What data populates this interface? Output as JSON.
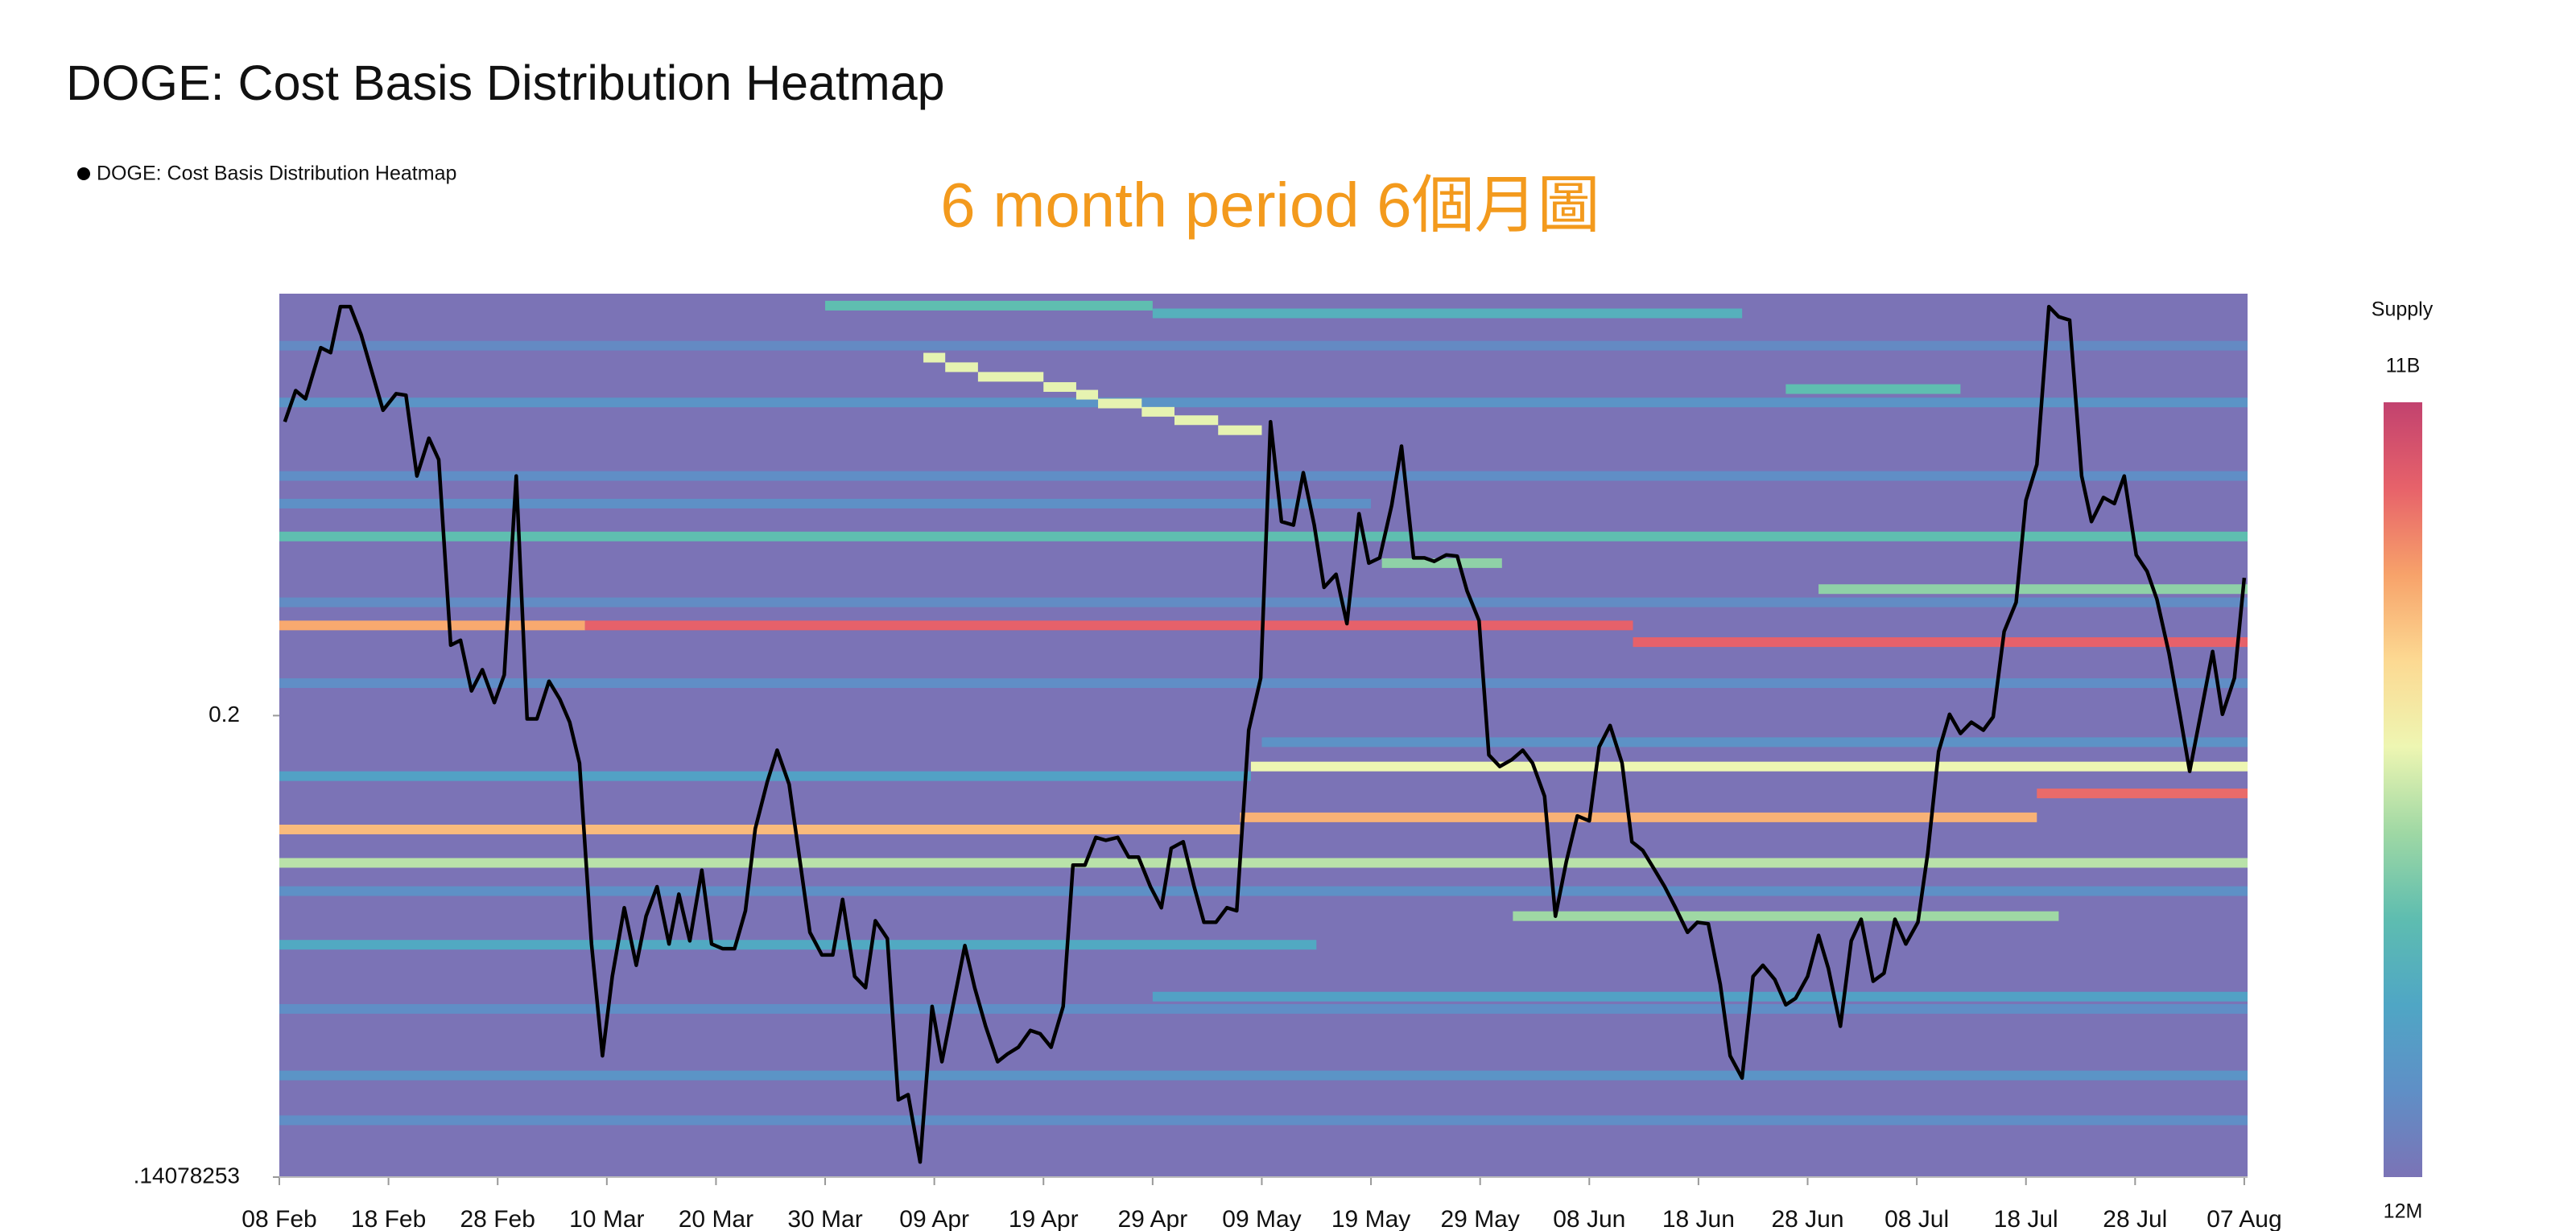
{
  "chart_data": {
    "type": "heatmap",
    "title": "DOGE: Cost Basis Distribution Heatmap",
    "annotation": "6 month period 6個月圖",
    "log_y": true,
    "xlim": [
      0,
      180.3
    ],
    "xticks": [
      {
        "value": 0,
        "label": "08 Feb"
      },
      {
        "value": 10,
        "label": "18 Feb"
      },
      {
        "value": 20,
        "label": "28 Feb"
      },
      {
        "value": 30,
        "label": "10 Mar"
      },
      {
        "value": 40,
        "label": "20 Mar"
      },
      {
        "value": 50,
        "label": "30 Mar"
      },
      {
        "value": 60,
        "label": "09 Apr"
      },
      {
        "value": 70,
        "label": "19 Apr"
      },
      {
        "value": 80,
        "label": "29 Apr"
      },
      {
        "value": 90,
        "label": "09 May"
      },
      {
        "value": 100,
        "label": "19 May"
      },
      {
        "value": 110,
        "label": "29 May"
      },
      {
        "value": 120,
        "label": "08 Jun"
      },
      {
        "value": 130,
        "label": "18 Jun"
      },
      {
        "value": 140,
        "label": "28 Jun"
      },
      {
        "value": 150,
        "label": "08 Jul"
      },
      {
        "value": 160,
        "label": "18 Jul"
      },
      {
        "value": 170,
        "label": "28 Jul"
      },
      {
        "value": 180,
        "label": "07 Aug"
      }
    ],
    "ylim": [
      0.14078253,
      0.2757
    ],
    "yticks": [
      0.2,
      {
        "value": 0.14078253,
        "label": ".14078253"
      }
    ],
    "series": [
      {
        "name": "DOGE: Cost Basis Distribution Heatmap",
        "color": "#000000",
        "x": [
          0.5,
          1.5,
          2.4,
          3.8,
          4.7,
          5.6,
          6.5,
          7.5,
          9.5,
          10.7,
          11.6,
          12.6,
          13.7,
          14.6,
          15.7,
          16.6,
          17.6,
          18.6,
          19.7,
          20.6,
          21.7,
          22.7,
          23.6,
          24.7,
          25.7,
          26.6,
          27.5,
          28.6,
          29.6,
          30.5,
          31.6,
          32.7,
          33.6,
          34.6,
          35.7,
          36.6,
          37.6,
          38.7,
          39.6,
          40.6,
          41.7,
          42.7,
          43.6,
          44.7,
          45.6,
          46.7,
          47.7,
          48.6,
          49.7,
          50.7,
          51.6,
          52.7,
          53.7,
          54.6,
          55.7,
          56.7,
          57.6,
          58.7,
          59.8,
          60.7,
          62.8,
          63.7,
          64.7,
          65.8,
          66.7,
          67.7,
          68.8,
          69.7,
          70.7,
          71.8,
          72.7,
          73.8,
          74.8,
          75.7,
          76.8,
          77.8,
          78.7,
          79.8,
          80.8,
          81.7,
          82.8,
          83.8,
          84.7,
          85.8,
          86.8,
          87.7,
          88.8,
          89.9,
          90.8,
          91.8,
          92.9,
          93.8,
          94.8,
          95.7,
          96.8,
          97.8,
          98.9,
          99.8,
          100.8,
          101.9,
          102.8,
          103.9,
          104.9,
          105.8,
          106.9,
          107.9,
          108.8,
          109.9,
          110.8,
          111.8,
          112.9,
          113.9,
          114.8,
          115.9,
          116.9,
          117.9,
          118.9,
          120.0,
          120.9,
          121.9,
          123.0,
          123.9,
          124.9,
          126.0,
          126.9,
          127.9,
          129.0,
          129.9,
          130.9,
          132.0,
          132.9,
          134.0,
          135.0,
          135.9,
          137.0,
          138.0,
          138.9,
          140.0,
          141.0,
          141.9,
          143.0,
          144.0,
          144.9,
          146.0,
          147.0,
          148.0,
          149.0,
          150.1,
          151.0,
          152.0,
          153.0,
          154.0,
          155.0,
          156.1,
          157.0,
          158.0,
          159.1,
          160.0,
          161.0,
          162.1,
          163.0,
          164.0,
          165.1,
          166.0,
          167.1,
          168.1,
          169.0,
          170.1,
          171.1,
          172.0,
          173.1,
          174.1,
          175.0,
          176.1,
          177.1,
          178.0,
          179.1,
          180.0
        ],
        "values": [
          0.2501,
          0.2561,
          0.2545,
          0.2646,
          0.2636,
          0.273,
          0.273,
          0.2672,
          0.2523,
          0.2555,
          0.2552,
          0.24,
          0.247,
          0.243,
          0.211,
          0.2118,
          0.2038,
          0.2071,
          0.202,
          0.2063,
          0.24,
          0.1995,
          0.1995,
          0.2053,
          0.2025,
          0.199,
          0.1929,
          0.1681,
          0.1544,
          0.164,
          0.1728,
          0.1654,
          0.1717,
          0.1756,
          0.1681,
          0.1746,
          0.1685,
          0.1778,
          0.1681,
          0.1675,
          0.1675,
          0.1724,
          0.1835,
          0.1902,
          0.1948,
          0.1898,
          0.179,
          0.1696,
          0.1667,
          0.1667,
          0.1739,
          0.164,
          0.1626,
          0.1711,
          0.1688,
          0.1493,
          0.1499,
          0.1424,
          0.1603,
          0.1537,
          0.1679,
          0.1626,
          0.1579,
          0.1537,
          0.1546,
          0.1554,
          0.1574,
          0.157,
          0.1554,
          0.1603,
          0.1785,
          0.1785,
          0.1823,
          0.1819,
          0.1823,
          0.1796,
          0.1796,
          0.1756,
          0.1728,
          0.1808,
          0.1817,
          0.1756,
          0.1709,
          0.1709,
          0.1728,
          0.1724,
          0.1978,
          0.2058,
          0.2501,
          0.2318,
          0.2312,
          0.2406,
          0.2312,
          0.2205,
          0.2227,
          0.2145,
          0.2332,
          0.2246,
          0.2255,
          0.2347,
          0.2455,
          0.2255,
          0.2255,
          0.2249,
          0.226,
          0.2258,
          0.2199,
          0.215,
          0.1941,
          0.1924,
          0.1934,
          0.1948,
          0.1929,
          0.1881,
          0.1717,
          0.179,
          0.1853,
          0.1846,
          0.1953,
          0.1985,
          0.1929,
          0.1817,
          0.1805,
          0.1778,
          0.1756,
          0.1728,
          0.1696,
          0.1709,
          0.1707,
          0.163,
          0.1544,
          0.1518,
          0.164,
          0.1654,
          0.1636,
          0.1605,
          0.1613,
          0.164,
          0.1692,
          0.165,
          0.1579,
          0.1685,
          0.1713,
          0.1634,
          0.1644,
          0.1713,
          0.1681,
          0.1709,
          0.1801,
          0.1946,
          0.2002,
          0.1973,
          0.199,
          0.1978,
          0.1998,
          0.2132,
          0.218,
          0.2356,
          0.2421,
          0.273,
          0.2709,
          0.2702,
          0.24,
          0.2318,
          0.2361,
          0.235,
          0.24,
          0.226,
          0.2232,
          0.2185,
          0.2097,
          0.2002,
          0.1917,
          0.201,
          0.21,
          0.2002,
          0.2058,
          0.2221
        ]
      }
    ],
    "heatmap": {
      "label": "Supply",
      "zlim": [
        12000000,
        11000000000
      ],
      "zticks": [
        {
          "value": 11000000000,
          "label": "11B"
        },
        {
          "value": 12000000,
          "label": "12M"
        }
      ],
      "colorscale": [
        "#7b73b6",
        "#5f8fc6",
        "#4fa6c5",
        "#5ebdb0",
        "#9fd8a4",
        "#eef6b2",
        "#fcd992",
        "#f7a26a",
        "#e7626a",
        "#c2426f"
      ],
      "bands": [
        {
          "y": 0.265,
          "x0": 0,
          "x1": 180.3,
          "z": 1000000000
        },
        {
          "y": 0.24,
          "x0": 0,
          "x1": 180.3,
          "z": 1200000000
        },
        {
          "y": 0.218,
          "x0": 0,
          "x1": 180.3,
          "z": 1100000000
        },
        {
          "y": 0.205,
          "x0": 0,
          "x1": 180.3,
          "z": 1200000000
        },
        {
          "y": 0.175,
          "x0": 0,
          "x1": 180.3,
          "z": 1300000000
        },
        {
          "y": 0.16,
          "x0": 0,
          "x1": 180.3,
          "z": 1200000000
        },
        {
          "y": 0.147,
          "x0": 0,
          "x1": 180.3,
          "z": 1200000000
        },
        {
          "y": 0.196,
          "x0": 90,
          "x1": 180.3,
          "z": 1400000000
        },
        {
          "y": 0.235,
          "x0": 0,
          "x1": 100,
          "z": 1300000000
        },
        {
          "y": 0.2538,
          "x0": 0,
          "x1": 180.3,
          "z": 1500000000
        },
        {
          "y": 0.1521,
          "x0": 0,
          "x1": 180.3,
          "z": 1500000000
        },
        {
          "y": 0.168,
          "x0": 0,
          "x1": 95,
          "z": 2600000000
        },
        {
          "y": 0.1615,
          "x0": 80,
          "x1": 180.3,
          "z": 2200000000
        },
        {
          "y": 0.191,
          "x0": 0,
          "x1": 89,
          "z": 2200000000
        },
        {
          "y": 0.2732,
          "x0": 50,
          "x1": 80,
          "z": 3700000000
        },
        {
          "y": 0.2716,
          "x0": 80,
          "x1": 134,
          "z": 3000000000
        },
        {
          "y": 0.2564,
          "x0": 138,
          "x1": 154,
          "z": 3700000000
        },
        {
          "y": 0.2292,
          "x0": 0,
          "x1": 180.3,
          "z": 3700000000
        },
        {
          "y": 0.2246,
          "x0": 101,
          "x1": 112,
          "z": 4600000000
        },
        {
          "y": 0.2202,
          "x0": 141,
          "x1": 180.3,
          "z": 4600000000
        },
        {
          "y": 0.1717,
          "x0": 113,
          "x1": 163,
          "z": 4900000000
        },
        {
          "y": 0.1788,
          "x0": 0,
          "x1": 180.3,
          "z": 5300000000
        },
        {
          "y": 0.2626,
          "x0": 59,
          "x1": 61,
          "z": 6000000000
        },
        {
          "y": 0.2607,
          "x0": 61,
          "x1": 64,
          "z": 6000000000
        },
        {
          "y": 0.2588,
          "x0": 64,
          "x1": 70,
          "z": 6000000000
        },
        {
          "y": 0.2568,
          "x0": 70,
          "x1": 73,
          "z": 6000000000
        },
        {
          "y": 0.2553,
          "x0": 73,
          "x1": 75,
          "z": 6000000000
        },
        {
          "y": 0.2536,
          "x0": 75,
          "x1": 79,
          "z": 6000000000
        },
        {
          "y": 0.252,
          "x0": 79,
          "x1": 82,
          "z": 6000000000
        },
        {
          "y": 0.2504,
          "x0": 82,
          "x1": 86,
          "z": 6000000000
        },
        {
          "y": 0.2485,
          "x0": 86,
          "x1": 90,
          "z": 6000000000
        },
        {
          "y": 0.1924,
          "x0": 89,
          "x1": 180.3,
          "z": 6100000000
        },
        {
          "y": 0.1834,
          "x0": 0,
          "x1": 88,
          "z": 8000000000
        },
        {
          "y": 0.1851,
          "x0": 88,
          "x1": 161,
          "z": 8200000000
        },
        {
          "y": 0.2142,
          "x0": 0,
          "x1": 28,
          "z": 8400000000
        },
        {
          "y": 0.1885,
          "x0": 161,
          "x1": 180.3,
          "z": 9600000000
        },
        {
          "y": 0.2142,
          "x0": 28,
          "x1": 124,
          "z": 9800000000
        },
        {
          "y": 0.2115,
          "x0": 124,
          "x1": 180.3,
          "z": 9800000000
        }
      ]
    }
  }
}
